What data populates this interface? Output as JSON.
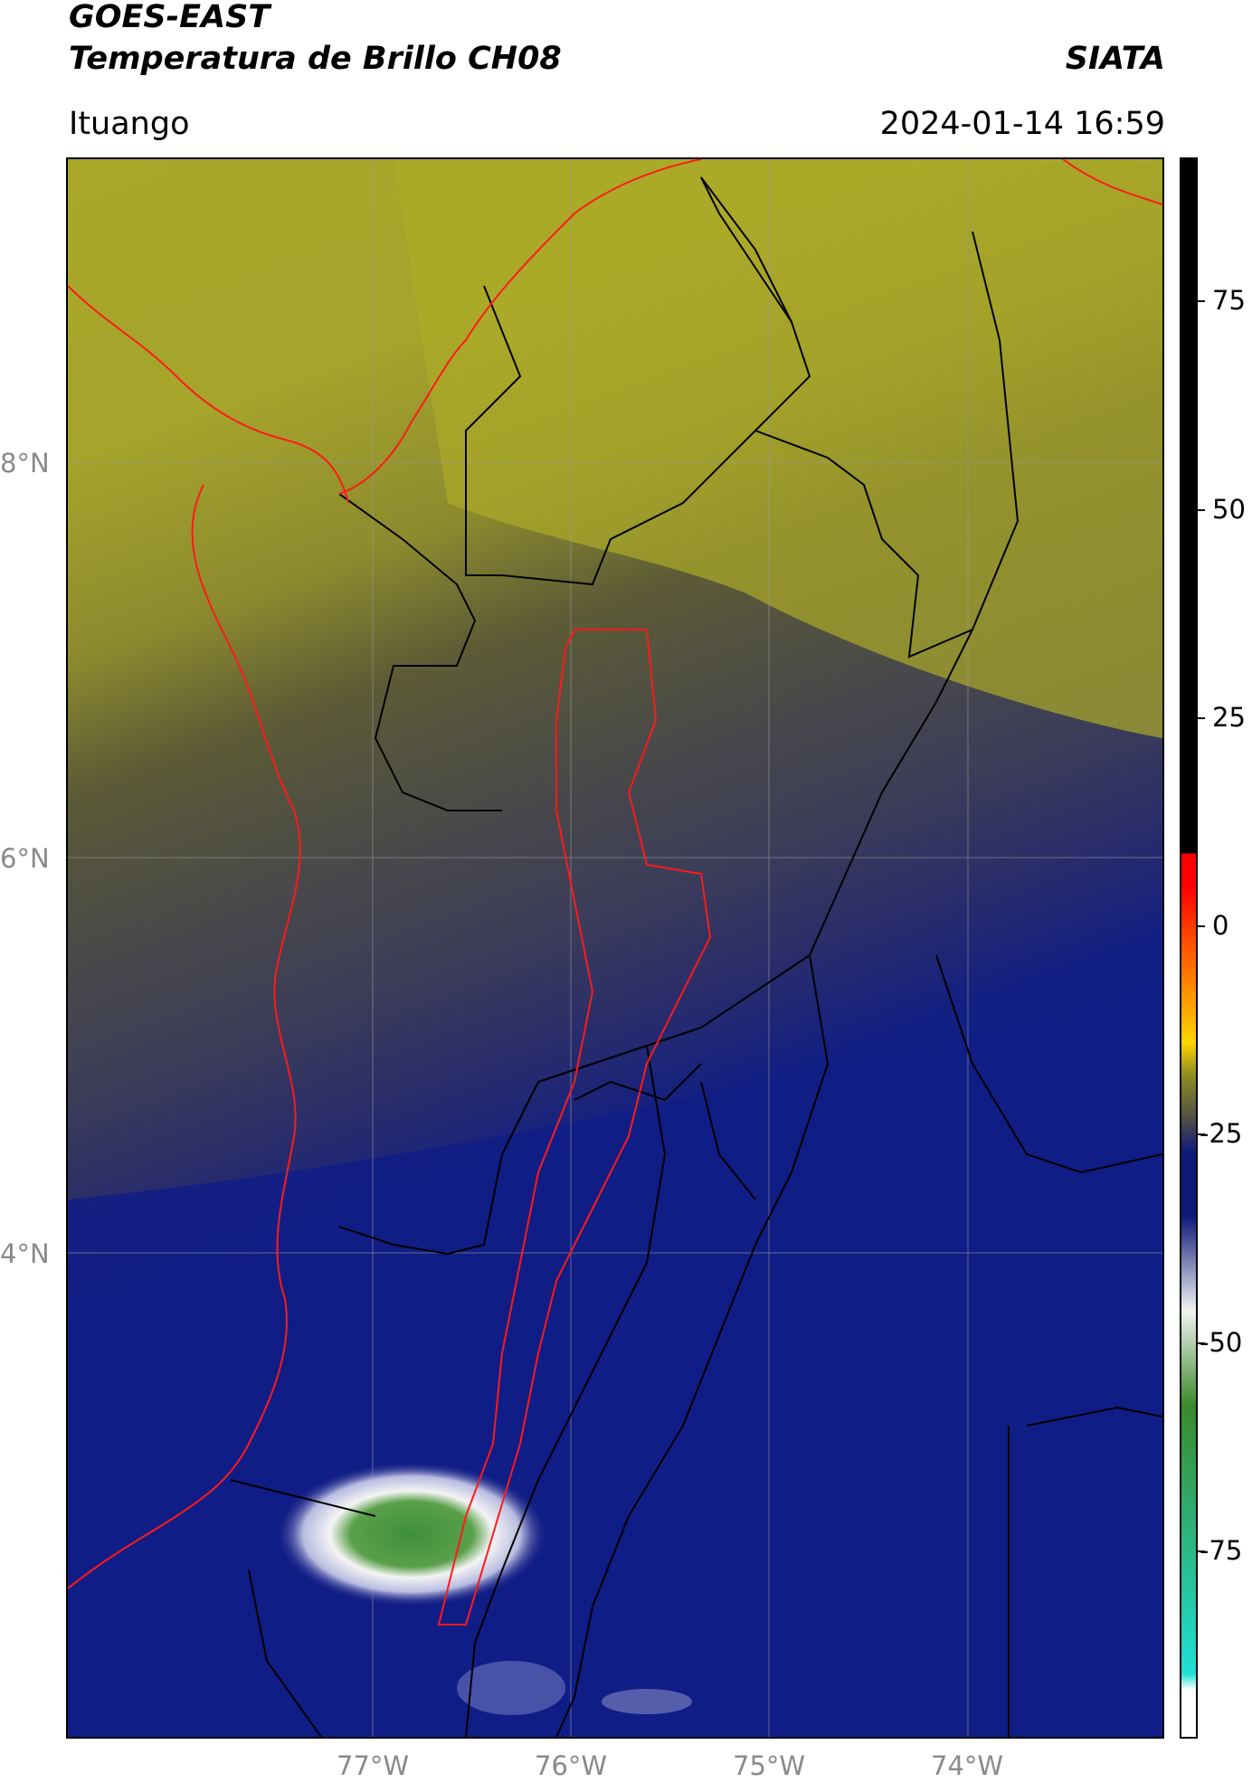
{
  "header": {
    "satellite": "GOES-EAST",
    "product": "Temperatura de Brillo CH08",
    "agency": "SIATA",
    "region": "Ituango",
    "datetime": "2024-01-14 16:59"
  },
  "map": {
    "lon_ticks": [
      "77°W",
      "76°W",
      "75°W",
      "74°W"
    ],
    "lat_ticks": [
      "8°N",
      "6°N",
      "4°N"
    ],
    "border_colors": {
      "national": "#ff1a1a",
      "departmental": "#000000"
    }
  },
  "colorbar": {
    "ticks": [
      "75",
      "50",
      "25",
      "0",
      "-25",
      "-50",
      "-75"
    ],
    "colors": {
      "warm": "#000000",
      "hot": "#ff0000",
      "mid": "#ffd400",
      "olive": "#8f8f1f",
      "gray": "#4a4a4a",
      "navy": "#0d1a7a",
      "white": "#f2f2f2",
      "green": "#3a8a2a",
      "cyan": "#1ee0d6"
    }
  }
}
